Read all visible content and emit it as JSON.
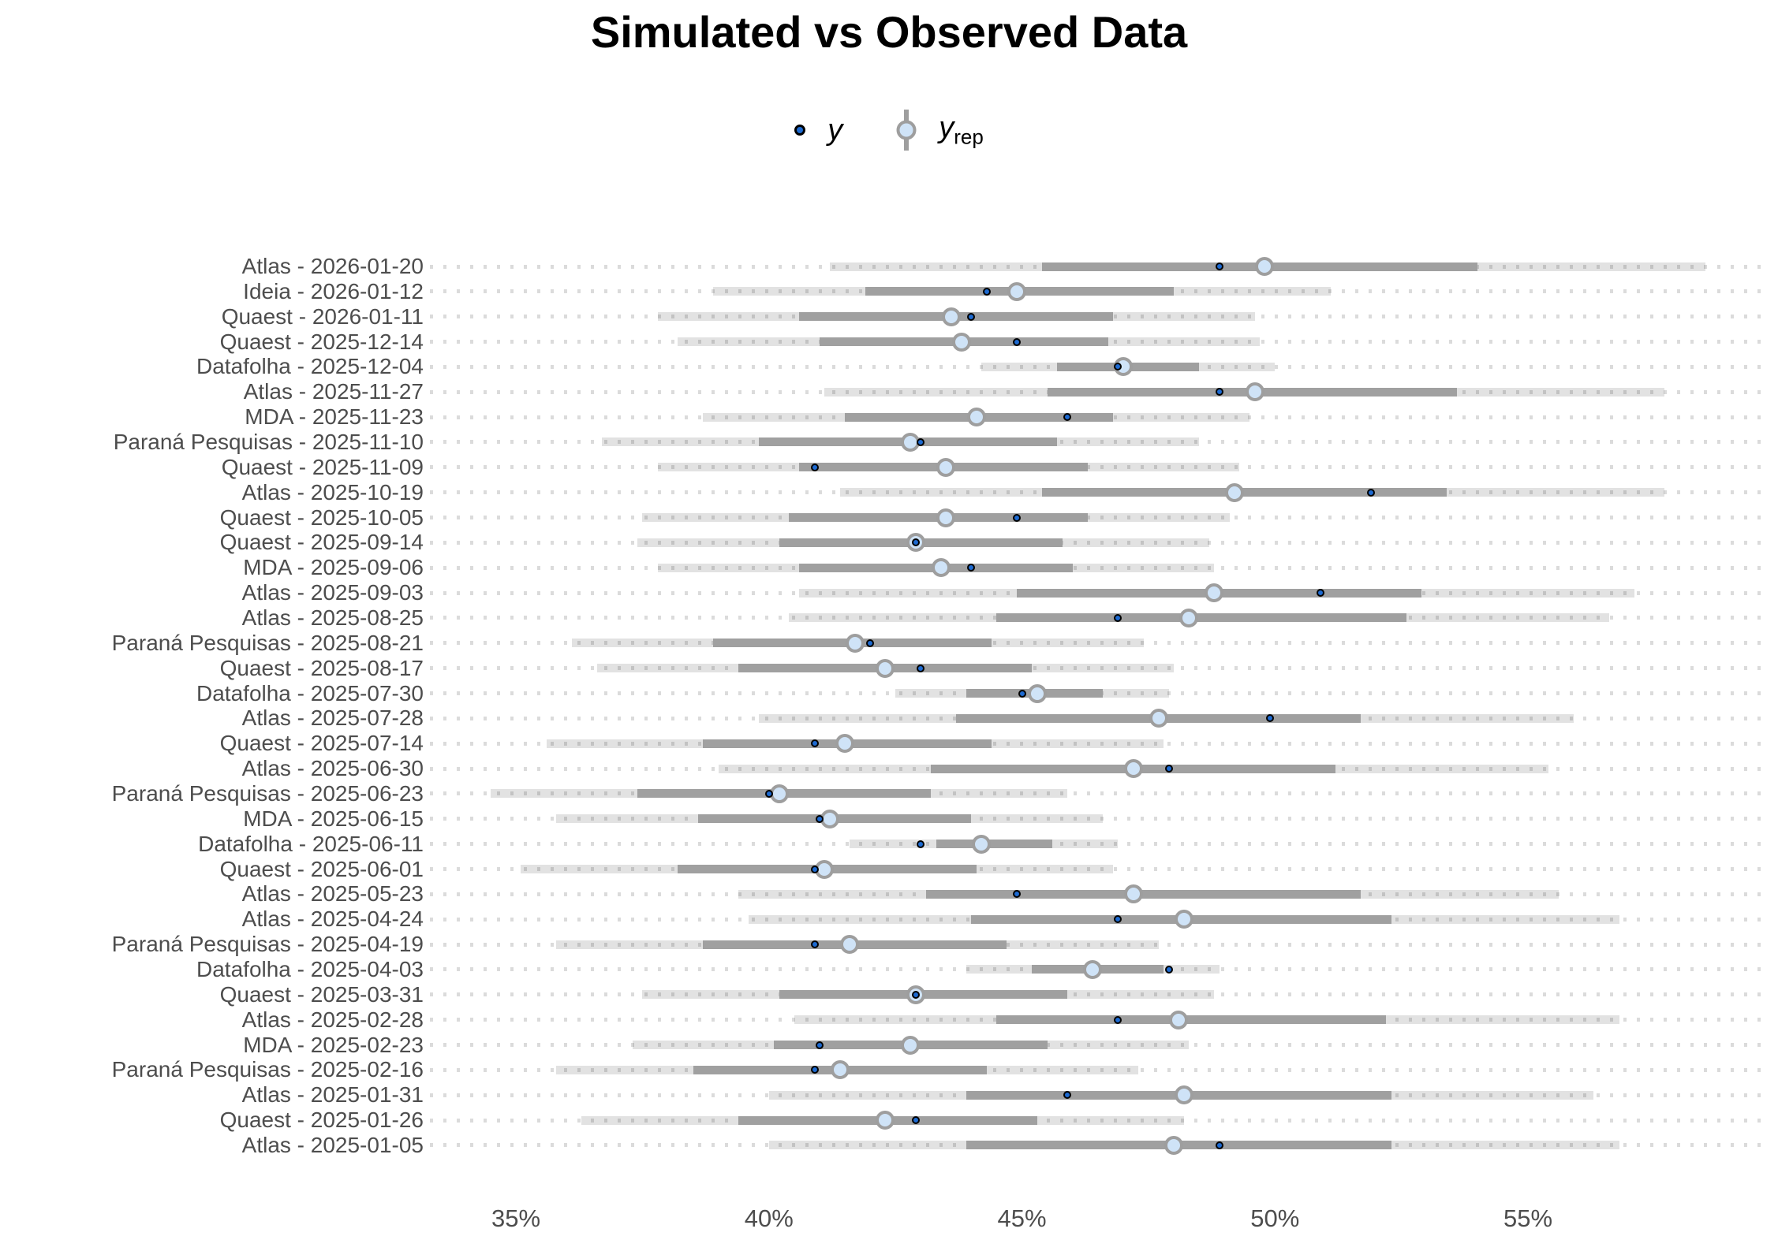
{
  "title": "Simulated vs Observed Data",
  "legend": {
    "y_label": "y",
    "yrep_label": "y",
    "yrep_sub": "rep"
  },
  "colors": {
    "y_fill": "#1d6ad1",
    "y_border": "#000000",
    "yrep_fill": "#cfe3f7",
    "yrep_border": "#9e9e9e",
    "inner_bar": "#a0a0a0",
    "outer_bar": "#e2e2e2",
    "label_gray": "#4d4d4d"
  },
  "x_axis": {
    "tick_labels": [
      "35%",
      "40%",
      "45%",
      "50%",
      "55%"
    ],
    "tick_values": [
      35,
      40,
      45,
      50,
      55
    ],
    "domain": [
      33.3,
      59.8
    ],
    "unit": "percent"
  },
  "chart_data": {
    "type": "scatter",
    "style": "horizontal posterior predictive intervals (ppc_intervals): outer 90% band, inner 50% band, y_rep point estimate, observed y point",
    "title": "Simulated vs Observed Data",
    "xlabel": "",
    "ylabel": "",
    "xlim": [
      33.3,
      59.8
    ],
    "grid": "dotted horizontal line per row",
    "legend_entries": [
      "y",
      "y_rep"
    ],
    "legend_position": "top center",
    "rows": [
      {
        "label": "Atlas - 2026-01-20",
        "outer": [
          41.2,
          58.5
        ],
        "inner": [
          45.4,
          54.0
        ],
        "y_rep": 49.8,
        "y": 48.9
      },
      {
        "label": "Ideia - 2026-01-12",
        "outer": [
          38.9,
          51.1
        ],
        "inner": [
          41.9,
          48.0
        ],
        "y_rep": 44.9,
        "y": 44.3
      },
      {
        "label": "Quaest - 2026-01-11",
        "outer": [
          37.8,
          49.6
        ],
        "inner": [
          40.6,
          46.8
        ],
        "y_rep": 43.6,
        "y": 44.0
      },
      {
        "label": "Quaest - 2025-12-14",
        "outer": [
          38.2,
          49.7
        ],
        "inner": [
          41.0,
          46.7
        ],
        "y_rep": 43.8,
        "y": 44.9
      },
      {
        "label": "Datafolha - 2025-12-04",
        "outer": [
          44.2,
          50.0
        ],
        "inner": [
          45.7,
          48.5
        ],
        "y_rep": 47.0,
        "y": 46.9
      },
      {
        "label": "Atlas - 2025-11-27",
        "outer": [
          41.1,
          57.7
        ],
        "inner": [
          45.5,
          53.6
        ],
        "y_rep": 49.6,
        "y": 48.9
      },
      {
        "label": "MDA - 2025-11-23",
        "outer": [
          38.7,
          49.5
        ],
        "inner": [
          41.5,
          46.8
        ],
        "y_rep": 44.1,
        "y": 45.9
      },
      {
        "label": "Paraná Pesquisas - 2025-11-10",
        "outer": [
          36.7,
          48.5
        ],
        "inner": [
          39.8,
          45.7
        ],
        "y_rep": 42.8,
        "y": 43.0
      },
      {
        "label": "Quaest - 2025-11-09",
        "outer": [
          37.8,
          49.3
        ],
        "inner": [
          40.6,
          46.3
        ],
        "y_rep": 43.5,
        "y": 40.9
      },
      {
        "label": "Atlas - 2025-10-19",
        "outer": [
          41.4,
          57.7
        ],
        "inner": [
          45.4,
          53.4
        ],
        "y_rep": 49.2,
        "y": 51.9
      },
      {
        "label": "Quaest - 2025-10-05",
        "outer": [
          37.5,
          49.1
        ],
        "inner": [
          40.4,
          46.3
        ],
        "y_rep": 43.5,
        "y": 44.9
      },
      {
        "label": "Quaest - 2025-09-14",
        "outer": [
          37.4,
          48.7
        ],
        "inner": [
          40.2,
          45.8
        ],
        "y_rep": 42.9,
        "y": 42.9
      },
      {
        "label": "MDA - 2025-09-06",
        "outer": [
          37.8,
          48.8
        ],
        "inner": [
          40.6,
          46.0
        ],
        "y_rep": 43.4,
        "y": 44.0
      },
      {
        "label": "Atlas - 2025-09-03",
        "outer": [
          40.6,
          57.1
        ],
        "inner": [
          44.9,
          52.9
        ],
        "y_rep": 48.8,
        "y": 50.9
      },
      {
        "label": "Atlas - 2025-08-25",
        "outer": [
          40.4,
          56.6
        ],
        "inner": [
          44.5,
          52.6
        ],
        "y_rep": 48.3,
        "y": 46.9
      },
      {
        "label": "Paraná Pesquisas - 2025-08-21",
        "outer": [
          36.1,
          47.4
        ],
        "inner": [
          38.9,
          44.4
        ],
        "y_rep": 41.7,
        "y": 42.0
      },
      {
        "label": "Quaest - 2025-08-17",
        "outer": [
          36.6,
          48.0
        ],
        "inner": [
          39.4,
          45.2
        ],
        "y_rep": 42.3,
        "y": 43.0
      },
      {
        "label": "Datafolha - 2025-07-30",
        "outer": [
          42.5,
          47.9
        ],
        "inner": [
          43.9,
          46.6
        ],
        "y_rep": 45.3,
        "y": 45.0
      },
      {
        "label": "Atlas - 2025-07-28",
        "outer": [
          39.8,
          55.9
        ],
        "inner": [
          43.7,
          51.7
        ],
        "y_rep": 47.7,
        "y": 49.9
      },
      {
        "label": "Quaest - 2025-07-14",
        "outer": [
          35.6,
          47.8
        ],
        "inner": [
          38.7,
          44.4
        ],
        "y_rep": 41.5,
        "y": 40.9
      },
      {
        "label": "Atlas - 2025-06-30",
        "outer": [
          39.0,
          55.4
        ],
        "inner": [
          43.2,
          51.2
        ],
        "y_rep": 47.2,
        "y": 47.9
      },
      {
        "label": "Paraná Pesquisas - 2025-06-23",
        "outer": [
          34.5,
          45.9
        ],
        "inner": [
          37.4,
          43.2
        ],
        "y_rep": 40.2,
        "y": 40.0
      },
      {
        "label": "MDA - 2025-06-15",
        "outer": [
          35.8,
          46.6
        ],
        "inner": [
          38.6,
          44.0
        ],
        "y_rep": 41.2,
        "y": 41.0
      },
      {
        "label": "Datafolha - 2025-06-11",
        "outer": [
          41.6,
          46.9
        ],
        "inner": [
          43.3,
          45.6
        ],
        "y_rep": 44.2,
        "y": 43.0
      },
      {
        "label": "Quaest - 2025-06-01",
        "outer": [
          35.1,
          46.8
        ],
        "inner": [
          38.2,
          44.1
        ],
        "y_rep": 41.1,
        "y": 40.9
      },
      {
        "label": "Atlas - 2025-05-23",
        "outer": [
          39.4,
          55.6
        ],
        "inner": [
          43.1,
          51.7
        ],
        "y_rep": 47.2,
        "y": 44.9
      },
      {
        "label": "Atlas - 2025-04-24",
        "outer": [
          39.6,
          56.8
        ],
        "inner": [
          44.0,
          52.3
        ],
        "y_rep": 48.2,
        "y": 46.9
      },
      {
        "label": "Paraná Pesquisas - 2025-04-19",
        "outer": [
          35.8,
          47.7
        ],
        "inner": [
          38.7,
          44.7
        ],
        "y_rep": 41.6,
        "y": 40.9
      },
      {
        "label": "Datafolha - 2025-04-03",
        "outer": [
          43.9,
          48.9
        ],
        "inner": [
          45.2,
          47.8
        ],
        "y_rep": 46.4,
        "y": 47.9
      },
      {
        "label": "Quaest - 2025-03-31",
        "outer": [
          37.5,
          48.8
        ],
        "inner": [
          40.2,
          45.9
        ],
        "y_rep": 42.9,
        "y": 42.9
      },
      {
        "label": "Atlas - 2025-02-28",
        "outer": [
          40.5,
          56.8
        ],
        "inner": [
          44.5,
          52.2
        ],
        "y_rep": 48.1,
        "y": 46.9
      },
      {
        "label": "MDA - 2025-02-23",
        "outer": [
          37.3,
          48.3
        ],
        "inner": [
          40.1,
          45.5
        ],
        "y_rep": 42.8,
        "y": 41.0
      },
      {
        "label": "Paraná Pesquisas - 2025-02-16",
        "outer": [
          35.8,
          47.3
        ],
        "inner": [
          38.5,
          44.3
        ],
        "y_rep": 41.4,
        "y": 40.9
      },
      {
        "label": "Atlas - 2025-01-31",
        "outer": [
          40.0,
          56.3
        ],
        "inner": [
          43.9,
          52.3
        ],
        "y_rep": 48.2,
        "y": 45.9
      },
      {
        "label": "Quaest - 2025-01-26",
        "outer": [
          36.3,
          48.2
        ],
        "inner": [
          39.4,
          45.3
        ],
        "y_rep": 42.3,
        "y": 42.9
      },
      {
        "label": "Atlas - 2025-01-05",
        "outer": [
          40.0,
          56.8
        ],
        "inner": [
          43.9,
          52.3
        ],
        "y_rep": 48.0,
        "y": 48.9
      }
    ]
  }
}
